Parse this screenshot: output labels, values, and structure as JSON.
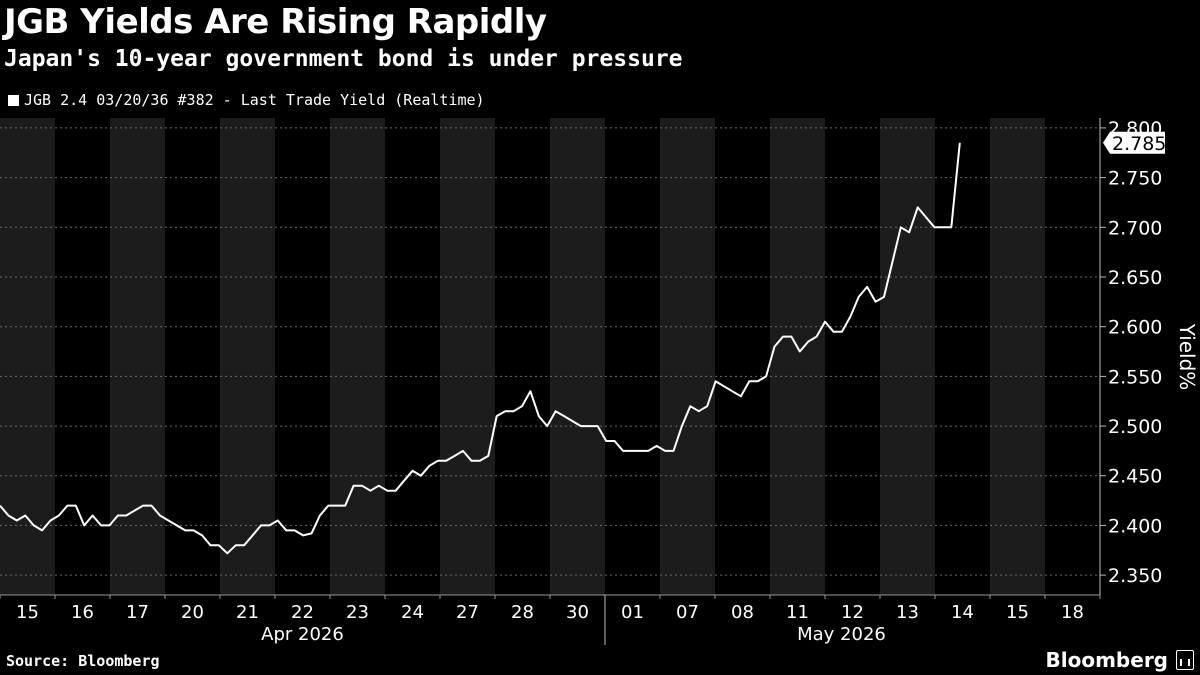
{
  "chart_data": {
    "type": "line",
    "title": "JGB Yields Are Rising Rapidly",
    "subtitle": "Japan's 10-year government bond is under pressure",
    "series": [
      {
        "name": "JGB 2.4 03/20/36 #382 - Last Trade Yield (Realtime)",
        "values": [
          2.42,
          2.41,
          2.405,
          2.41,
          2.4,
          2.395,
          2.405,
          2.41,
          2.42,
          2.42,
          2.4,
          2.41,
          2.4,
          2.4,
          2.41,
          2.41,
          2.415,
          2.42,
          2.42,
          2.41,
          2.405,
          2.4,
          2.395,
          2.395,
          2.39,
          2.38,
          2.38,
          2.372,
          2.38,
          2.38,
          2.39,
          2.4,
          2.4,
          2.405,
          2.395,
          2.395,
          2.39,
          2.392,
          2.41,
          2.42,
          2.42,
          2.42,
          2.44,
          2.44,
          2.435,
          2.44,
          2.435,
          2.435,
          2.445,
          2.455,
          2.45,
          2.46,
          2.465,
          2.465,
          2.47,
          2.475,
          2.465,
          2.465,
          2.47,
          2.51,
          2.515,
          2.515,
          2.52,
          2.535,
          2.51,
          2.5,
          2.515,
          2.51,
          2.505,
          2.5,
          2.5,
          2.5,
          2.485,
          2.485,
          2.475,
          2.475,
          2.475,
          2.475,
          2.48,
          2.475,
          2.475,
          2.5,
          2.52,
          2.515,
          2.52,
          2.545,
          2.54,
          2.535,
          2.53,
          2.545,
          2.545,
          2.55,
          2.58,
          2.59,
          2.59,
          2.575,
          2.585,
          2.59,
          2.605,
          2.595,
          2.595,
          2.61,
          2.63,
          2.64,
          2.625,
          2.63,
          2.665,
          2.7,
          2.695,
          2.72,
          2.71,
          2.7,
          2.7,
          2.7,
          2.785
        ]
      }
    ],
    "last_value_label": "2.785",
    "ylabel": "Yield%",
    "ylim": [
      2.33,
      2.81
    ],
    "yticks": [
      "2.350",
      "2.400",
      "2.450",
      "2.500",
      "2.550",
      "2.600",
      "2.650",
      "2.700",
      "2.750",
      "2.800"
    ],
    "yticks_num": [
      2.35,
      2.4,
      2.45,
      2.5,
      2.55,
      2.6,
      2.65,
      2.7,
      2.75,
      2.8
    ],
    "xticks": [
      "15",
      "16",
      "17",
      "20",
      "21",
      "22",
      "23",
      "24",
      "27",
      "28",
      "30",
      "01",
      "07",
      "08",
      "11",
      "12",
      "13",
      "14",
      "15",
      "18"
    ],
    "month_labels": [
      "Apr 2026",
      "May 2026"
    ],
    "grid": true,
    "legend_position": "top-left"
  },
  "source": "Source: Bloomberg",
  "brand": "Bloomberg"
}
